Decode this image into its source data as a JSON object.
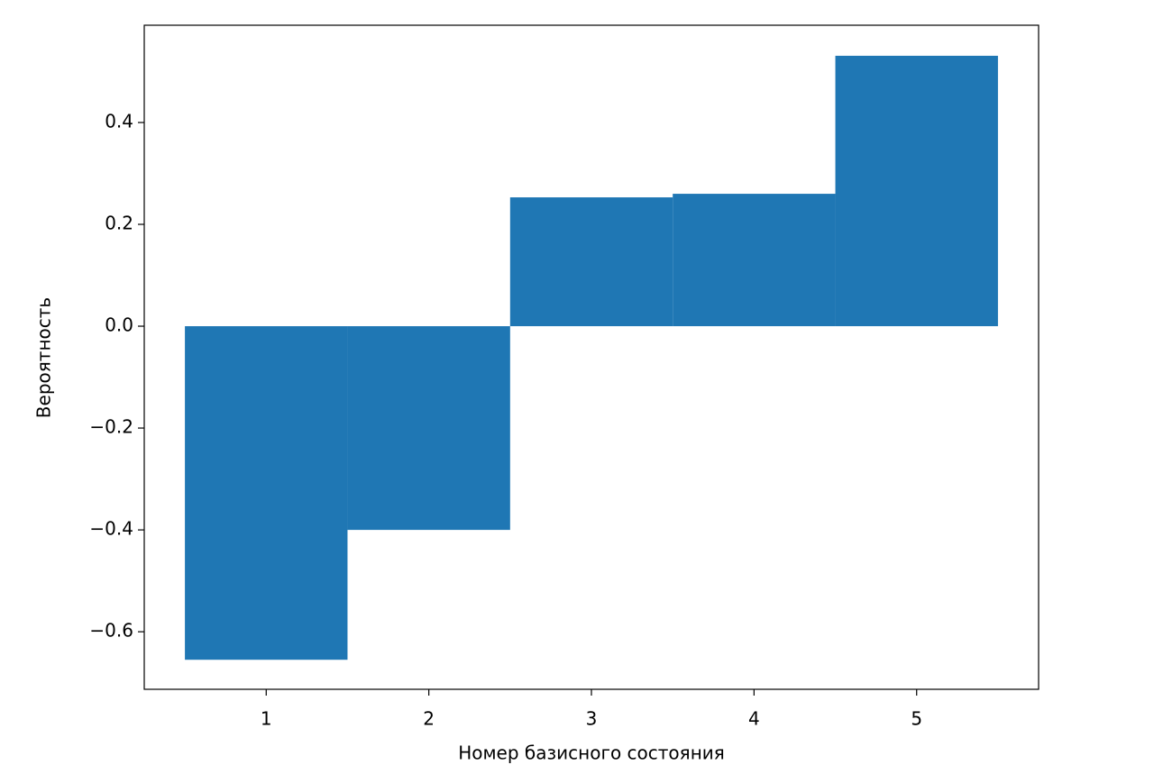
{
  "chart_data": {
    "type": "bar",
    "xlabel": "Номер базисного состояния",
    "ylabel": "Вероятность",
    "x": [
      1,
      2,
      3,
      4,
      5
    ],
    "values": [
      -0.655,
      -0.4,
      0.253,
      0.26,
      0.531
    ],
    "color": "#1f77b4",
    "xlim": [
      0.25,
      5.75
    ],
    "xticks": [
      1,
      2,
      3,
      4,
      5
    ],
    "ylim": [
      -0.713,
      0.591
    ],
    "yticks": [
      {
        "value": -0.6,
        "label": "−0.6"
      },
      {
        "value": -0.4,
        "label": "−0.4"
      },
      {
        "value": -0.2,
        "label": "−0.2"
      },
      {
        "value": 0,
        "label": "0.0"
      },
      0.2,
      0.4
    ],
    "grid": false
  }
}
